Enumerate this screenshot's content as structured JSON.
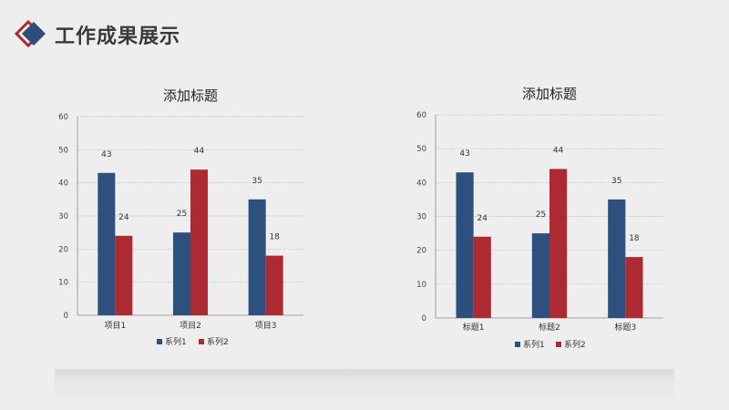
{
  "header": {
    "title": "工作成果展示",
    "logo_color_primary": "#2e4c7a",
    "logo_color_accent": "#b0282f"
  },
  "chart_data": [
    {
      "type": "bar",
      "title": "添加标题",
      "categories": [
        "项目1",
        "项目2",
        "项目3"
      ],
      "series": [
        {
          "name": "系列1",
          "values": [
            43,
            25,
            35
          ],
          "color": "#2e507f"
        },
        {
          "name": "系列2",
          "values": [
            24,
            44,
            18
          ],
          "color": "#ad2a32"
        }
      ],
      "ylim": [
        0,
        60
      ],
      "yticks": [
        0,
        10,
        20,
        30,
        40,
        50,
        60
      ],
      "grid": true,
      "legend": "bottom",
      "data_labels": true
    },
    {
      "type": "bar",
      "title": "添加标题",
      "categories": [
        "标题1",
        "标题2",
        "标题3"
      ],
      "series": [
        {
          "name": "系列1",
          "values": [
            43,
            25,
            35
          ],
          "color": "#2e507f"
        },
        {
          "name": "系列2",
          "values": [
            24,
            44,
            18
          ],
          "color": "#ad2a32"
        }
      ],
      "ylim": [
        0,
        60
      ],
      "yticks": [
        0,
        10,
        20,
        30,
        40,
        50,
        60
      ],
      "grid": true,
      "legend": "bottom",
      "data_labels": true
    }
  ]
}
